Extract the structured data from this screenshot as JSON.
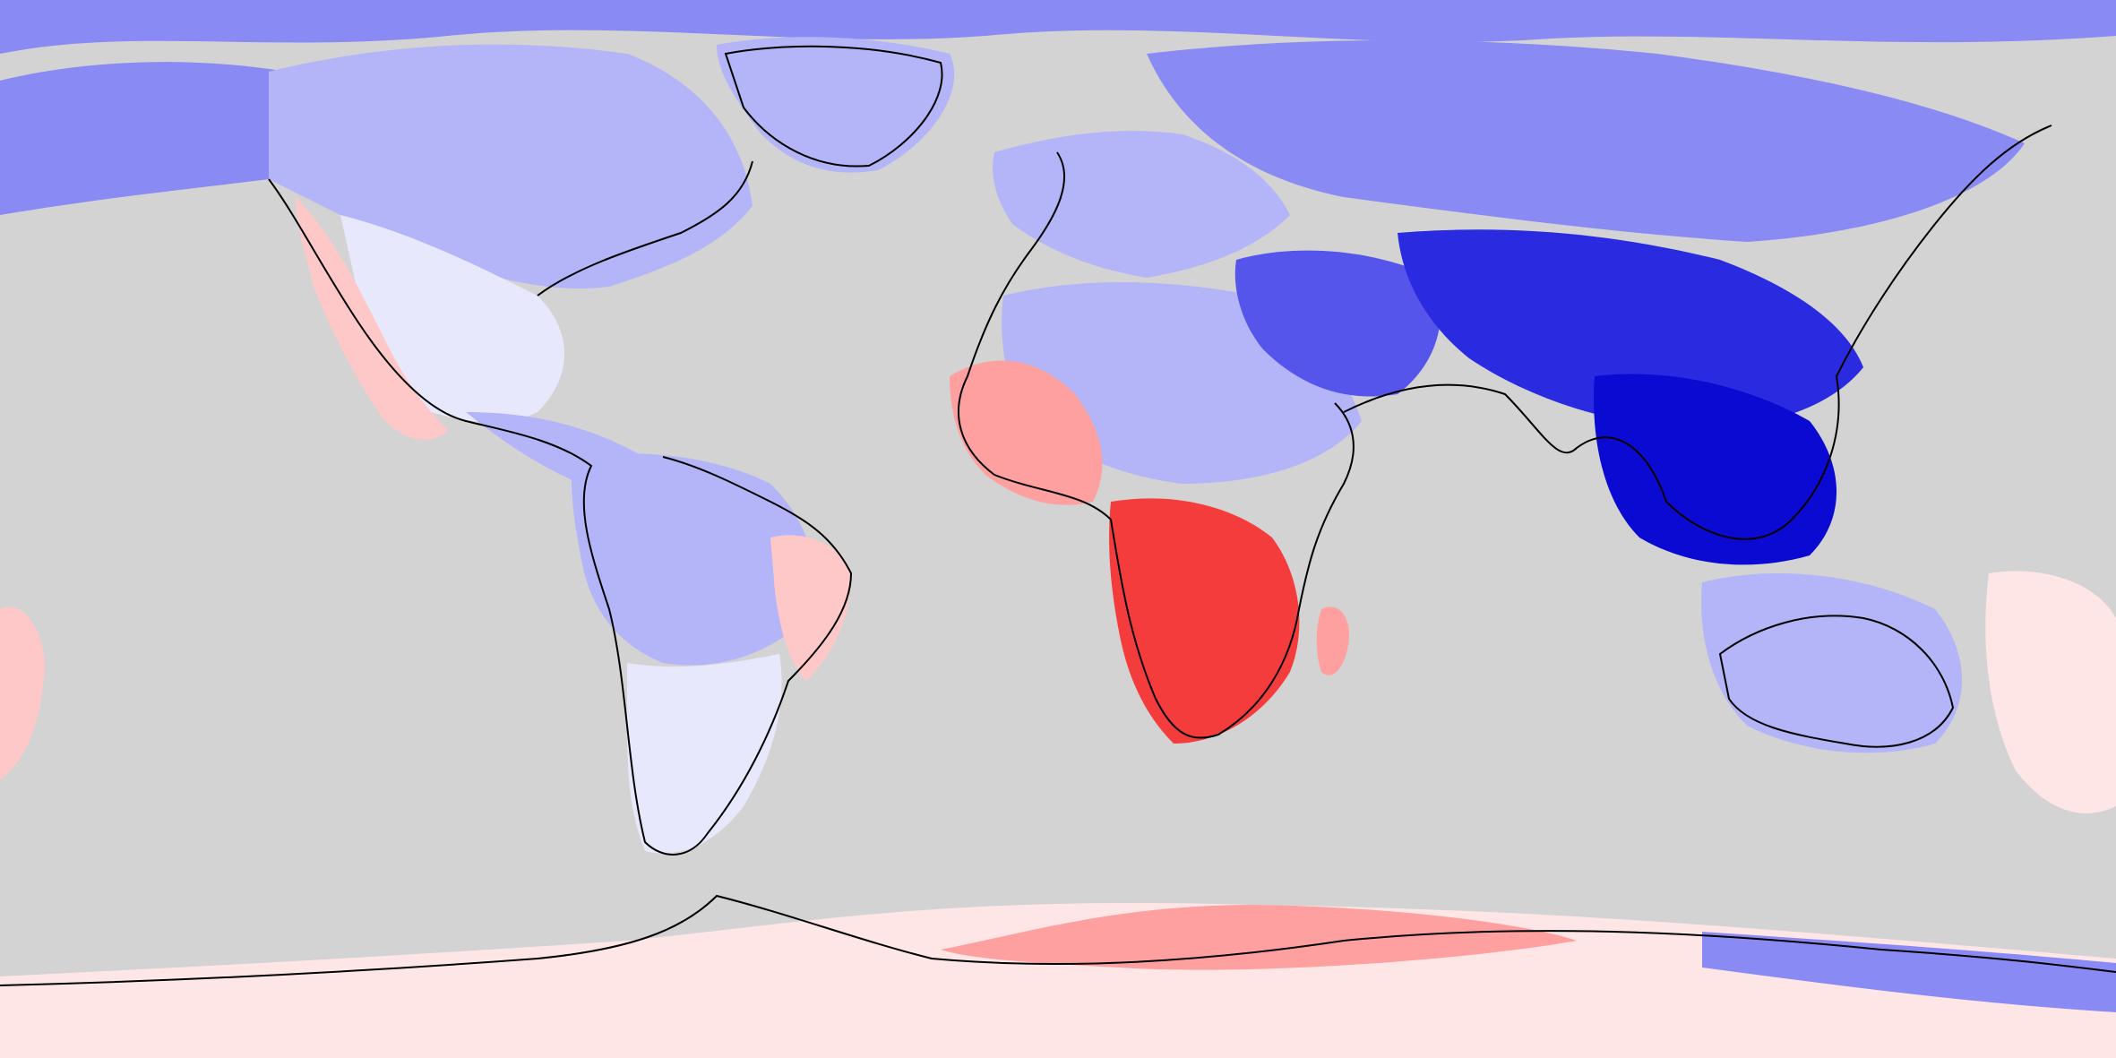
{
  "map": {
    "projection": "equirectangular",
    "extent": {
      "lon": [
        -180,
        180
      ],
      "lat": [
        -90,
        90
      ]
    },
    "ocean_color": "#d3d3d3",
    "coastline_color": "#000000",
    "legend": "none",
    "title": "",
    "colormap": {
      "type": "diverging",
      "levels": [
        {
          "level": -5,
          "color": "#0a0ad2"
        },
        {
          "level": -4,
          "color": "#2a2ae0"
        },
        {
          "level": -3,
          "color": "#5555ec"
        },
        {
          "level": -2,
          "color": "#8a8af4"
        },
        {
          "level": -1,
          "color": "#b4b4f8"
        },
        {
          "level": 0,
          "color": "#e8e8fd"
        },
        {
          "level": 1,
          "color": "#ffe6e6"
        },
        {
          "level": 2,
          "color": "#ffc8c8"
        },
        {
          "level": 3,
          "color": "#ffa0a0"
        },
        {
          "level": 4,
          "color": "#ff7373"
        },
        {
          "level": 5,
          "color": "#f53c3c"
        }
      ]
    },
    "regions": [
      {
        "name": "arctic-ocean",
        "level": -2
      },
      {
        "name": "north-america-north",
        "level": -2
      },
      {
        "name": "canada",
        "level": -1
      },
      {
        "name": "north-america-west-coast",
        "level": 2
      },
      {
        "name": "north-america-interior",
        "level": 0
      },
      {
        "name": "greenland",
        "level": -1
      },
      {
        "name": "central-america",
        "level": -1
      },
      {
        "name": "south-america-north",
        "level": -1
      },
      {
        "name": "south-america-south",
        "level": 0
      },
      {
        "name": "brazil-east",
        "level": 2
      },
      {
        "name": "europe",
        "level": -1
      },
      {
        "name": "north-africa",
        "level": -1
      },
      {
        "name": "west-africa",
        "level": 3
      },
      {
        "name": "southern-africa",
        "level": 5
      },
      {
        "name": "madagascar",
        "level": 3
      },
      {
        "name": "middle-east",
        "level": -3
      },
      {
        "name": "south-asia",
        "level": -4
      },
      {
        "name": "southeast-asia",
        "level": -5
      },
      {
        "name": "siberia",
        "level": -2
      },
      {
        "name": "australia",
        "level": -1
      },
      {
        "name": "new-zealand",
        "level": 1
      },
      {
        "name": "antarctica-east",
        "level": 3
      },
      {
        "name": "antarctica-west",
        "level": 1
      },
      {
        "name": "south-pacific-islands",
        "level": 2
      }
    ]
  }
}
